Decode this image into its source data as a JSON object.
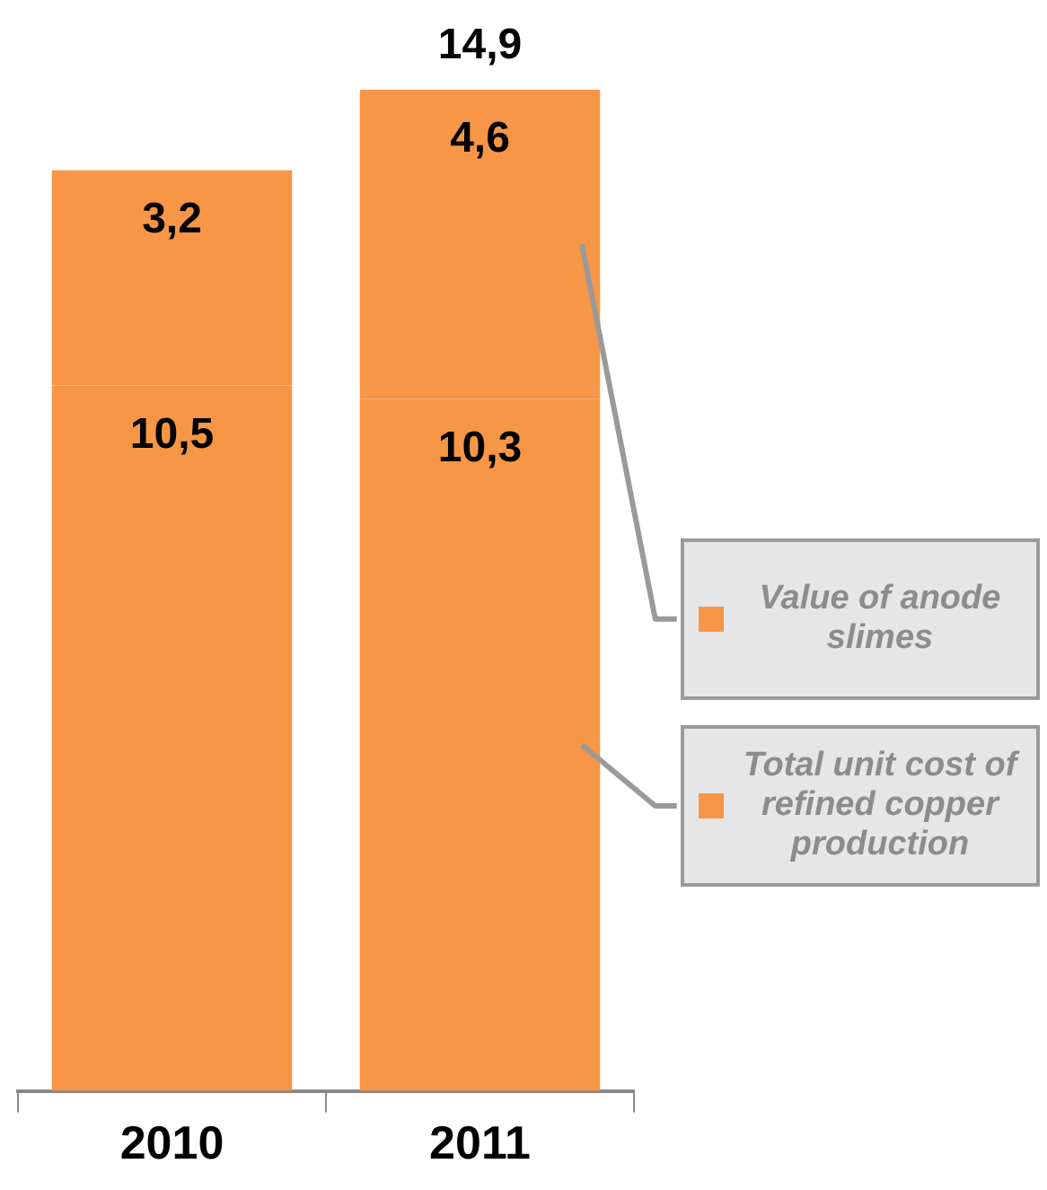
{
  "chart_data": {
    "type": "bar",
    "stacked": true,
    "categories": [
      "2010",
      "2011"
    ],
    "series": [
      {
        "name": "Total unit cost of refined copper production",
        "color": "#f79646",
        "values": [
          10.5,
          10.3
        ],
        "value_labels": [
          "10,5",
          "10,3"
        ]
      },
      {
        "name": "Value of anode slimes",
        "color": "#f79646",
        "values": [
          3.2,
          4.6
        ],
        "value_labels": [
          "3,2",
          "4,6"
        ]
      }
    ],
    "totals": [
      null,
      "14,9"
    ],
    "legend": "right",
    "grid": false
  }
}
